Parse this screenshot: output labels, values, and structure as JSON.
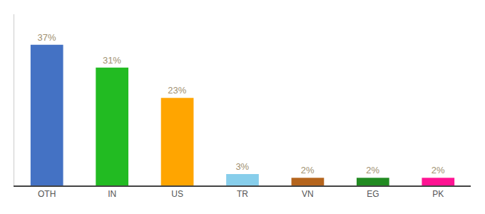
{
  "chart_data": {
    "type": "bar",
    "categories": [
      "OTH",
      "IN",
      "US",
      "TR",
      "VN",
      "EG",
      "PK"
    ],
    "values": [
      37,
      31,
      23,
      3,
      2,
      2,
      2
    ],
    "value_labels": [
      "37%",
      "31%",
      "23%",
      "3%",
      "2%",
      "2%",
      "2%"
    ],
    "colors": [
      "#4472c4",
      "#22bb22",
      "#ffa500",
      "#87ceeb",
      "#b5651d",
      "#228b22",
      "#ff1493"
    ],
    "ylim": [
      0,
      45
    ],
    "data_labels": true,
    "tick_labels": "x",
    "grid": false
  }
}
